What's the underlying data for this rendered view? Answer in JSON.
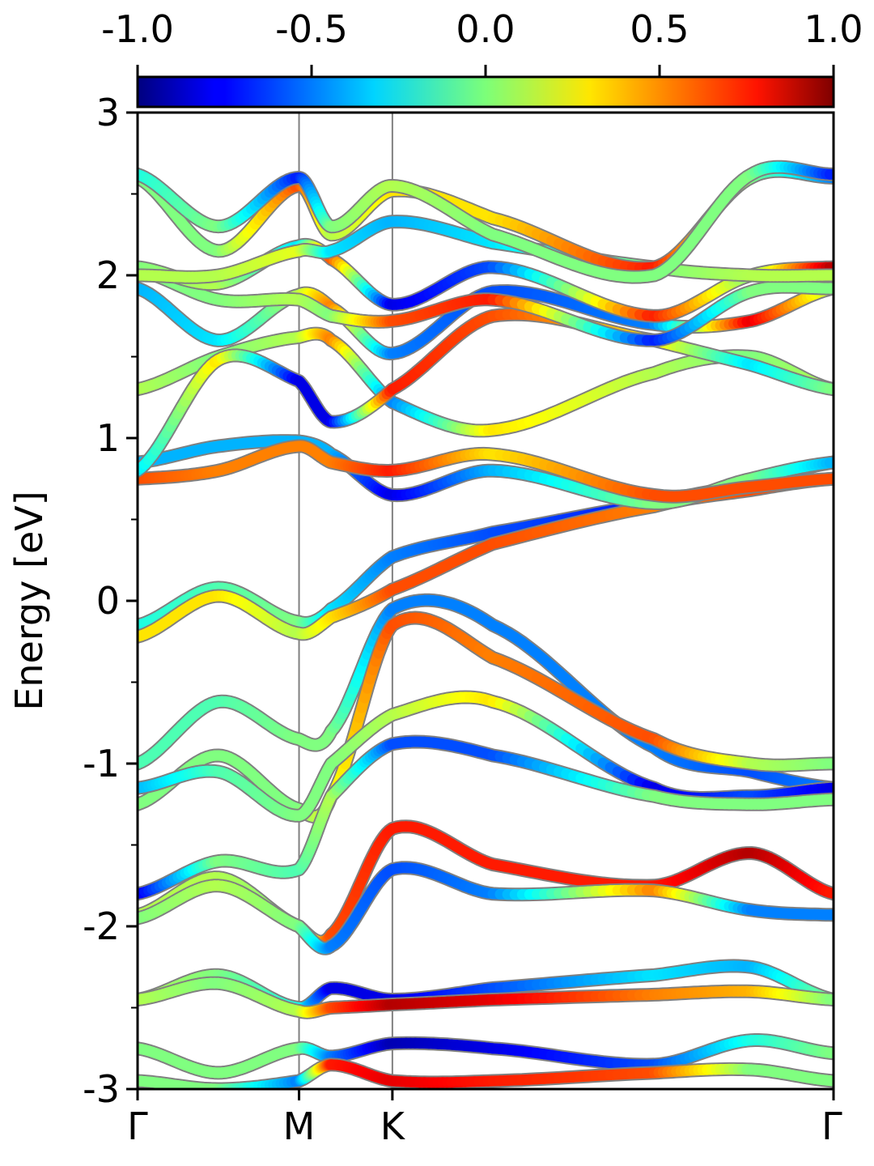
{
  "chart_data": {
    "type": "line",
    "xlabel": "",
    "ylabel": "Energy [eV]",
    "ylim": [
      -3,
      3
    ],
    "y_ticks": [
      3,
      2,
      1,
      0,
      -1,
      -2,
      -3
    ],
    "y_tick_labels": [
      "3",
      "2",
      "1",
      "0",
      "-1",
      "-2",
      "-3"
    ],
    "x_ticks": [
      0,
      1,
      1.578,
      4.31
    ],
    "x_tick_labels": [
      "Γ",
      "M",
      "K",
      "Γ"
    ],
    "xlim": [
      0,
      4.31
    ],
    "colorbar": {
      "range": [
        -1.0,
        1.0
      ],
      "ticks": [
        -1.0,
        -0.5,
        0.0,
        0.5,
        1.0
      ],
      "tick_labels": [
        "-1.0",
        "-0.5",
        "0.0",
        "0.5",
        "1.0"
      ],
      "colormap": "jet"
    },
    "grid": false,
    "colors": {
      "band_outline": "#808080",
      "vline": "#808080",
      "axes": "#000000"
    },
    "series": [
      {
        "x": [
          0,
          0.5,
          1.0,
          1.2,
          1.578,
          2.2,
          3.2,
          3.8,
          4.31
        ],
        "y": [
          -0.15,
          0.08,
          -0.13,
          -0.05,
          0.27,
          0.42,
          0.6,
          0.72,
          0.85
        ],
        "c": [
          -0.2,
          -0.1,
          0.0,
          -0.3,
          -0.5,
          -0.6,
          -0.7,
          -0.6,
          -0.4
        ]
      },
      {
        "x": [
          0,
          0.5,
          1.0,
          1.2,
          1.578,
          2.2,
          3.2,
          3.8,
          4.31
        ],
        "y": [
          -0.22,
          0.03,
          -0.2,
          -0.1,
          0.07,
          0.35,
          0.58,
          0.68,
          0.75
        ],
        "c": [
          0.3,
          0.3,
          0.1,
          0.3,
          0.6,
          0.6,
          0.5,
          0.6,
          0.6
        ]
      },
      {
        "x": [
          0,
          0.5,
          1.0,
          1.2,
          1.578,
          2.2,
          3.2,
          3.8,
          4.31
        ],
        "y": [
          -1.0,
          -0.62,
          -0.85,
          -0.8,
          -0.05,
          -0.15,
          -0.9,
          -1.05,
          -1.15
        ],
        "c": [
          -0.1,
          -0.1,
          0.0,
          0.0,
          -0.5,
          -0.5,
          -0.5,
          -0.6,
          -0.5
        ]
      },
      {
        "x": [
          0,
          0.5,
          1.0,
          1.2,
          1.578,
          2.2,
          3.2,
          3.8,
          4.31
        ],
        "y": [
          -1.25,
          -0.95,
          -1.28,
          -1.2,
          -0.15,
          -0.35,
          -0.85,
          -1.0,
          -1.0
        ],
        "c": [
          0.0,
          0.0,
          0.0,
          0.2,
          0.6,
          0.5,
          0.6,
          0.1,
          0.0
        ]
      },
      {
        "x": [
          0,
          0.5,
          1.0,
          1.2,
          1.578,
          2.2,
          3.2,
          3.8,
          4.31
        ],
        "y": [
          -1.15,
          -1.05,
          -1.32,
          -1.0,
          -0.7,
          -0.62,
          -1.15,
          -1.2,
          -1.15
        ],
        "c": [
          -0.4,
          -0.1,
          0.0,
          0.0,
          0.1,
          0.3,
          -0.8,
          -0.6,
          -0.8
        ]
      },
      {
        "x": [
          0,
          0.5,
          1.0,
          1.2,
          1.578,
          2.2,
          3.2,
          3.8,
          4.31
        ],
        "y": [
          -1.8,
          -1.6,
          -1.65,
          -1.2,
          -0.88,
          -0.95,
          -1.2,
          -1.25,
          -1.22
        ],
        "c": [
          -0.8,
          0.0,
          -0.1,
          0.1,
          -0.6,
          -0.6,
          0.0,
          0.0,
          0.0
        ]
      },
      {
        "x": [
          0,
          0.5,
          1.0,
          1.2,
          1.578,
          2.2,
          3.2,
          3.8,
          4.31
        ],
        "y": [
          -1.93,
          -1.7,
          -2.0,
          -2.05,
          -1.4,
          -1.62,
          -1.75,
          -1.55,
          -1.8
        ],
        "c": [
          0.1,
          0.1,
          0.0,
          0.6,
          0.7,
          0.7,
          0.7,
          0.9,
          0.7
        ]
      },
      {
        "x": [
          0,
          0.5,
          1.0,
          1.2,
          1.578,
          2.2,
          3.2,
          3.8,
          4.31
        ],
        "y": [
          -1.95,
          -1.75,
          -2.0,
          -2.12,
          -1.65,
          -1.8,
          -1.78,
          -1.9,
          -1.93
        ],
        "c": [
          0.0,
          0.1,
          0.0,
          -0.5,
          -0.6,
          -0.5,
          0.5,
          -0.5,
          -0.5
        ]
      },
      {
        "x": [
          0,
          0.5,
          1.0,
          1.2,
          1.578,
          2.2,
          3.2,
          3.8,
          4.31
        ],
        "y": [
          -2.45,
          -2.3,
          -2.5,
          -2.38,
          -2.45,
          -2.38,
          -2.3,
          -2.25,
          -2.45
        ],
        "c": [
          0.1,
          0.0,
          -0.2,
          -0.8,
          -0.8,
          -0.6,
          -0.3,
          -0.4,
          0.0
        ]
      },
      {
        "x": [
          0,
          0.5,
          1.0,
          1.2,
          1.578,
          2.2,
          3.2,
          3.8,
          4.31
        ],
        "y": [
          -2.45,
          -2.35,
          -2.52,
          -2.5,
          -2.48,
          -2.45,
          -2.42,
          -2.4,
          -2.45
        ],
        "c": [
          0.1,
          0.0,
          0.1,
          0.6,
          0.9,
          0.8,
          0.5,
          0.4,
          0.0
        ]
      },
      {
        "x": [
          0,
          0.5,
          1.0,
          1.2,
          1.578,
          2.2,
          3.2,
          3.8,
          4.31
        ],
        "y": [
          -2.75,
          -2.9,
          -2.75,
          -2.8,
          -2.72,
          -2.75,
          -2.85,
          -2.7,
          -2.78
        ],
        "c": [
          0.0,
          0.0,
          0.0,
          -0.5,
          -0.9,
          -0.8,
          -0.6,
          -0.2,
          0.0
        ]
      },
      {
        "x": [
          0,
          0.5,
          1.0,
          1.2,
          1.578,
          2.2,
          3.2,
          3.8,
          4.31
        ],
        "y": [
          -2.95,
          -3.0,
          -2.95,
          -2.85,
          -2.95,
          -2.95,
          -2.9,
          -2.88,
          -2.95
        ],
        "c": [
          0.0,
          0.0,
          -0.5,
          0.7,
          0.8,
          0.7,
          0.6,
          0.0,
          0.0
        ]
      },
      {
        "x": [
          0,
          0.5,
          1.0,
          1.2,
          1.578,
          2.2,
          3.2,
          3.8,
          4.31
        ],
        "y": [
          0.85,
          0.95,
          0.98,
          0.9,
          0.65,
          0.8,
          0.6,
          0.75,
          0.85
        ],
        "c": [
          -0.4,
          -0.4,
          -0.4,
          -0.4,
          -0.8,
          -0.4,
          0.0,
          0.0,
          -0.4
        ]
      },
      {
        "x": [
          0,
          0.5,
          1.0,
          1.2,
          1.578,
          2.2,
          3.2,
          3.8,
          4.31
        ],
        "y": [
          0.75,
          0.8,
          0.95,
          0.85,
          0.8,
          0.9,
          0.65,
          0.7,
          0.75
        ],
        "c": [
          0.6,
          0.5,
          0.5,
          0.5,
          0.7,
          0.3,
          0.6,
          0.6,
          0.6
        ]
      },
      {
        "x": [
          0,
          0.5,
          1.0,
          1.2,
          1.578,
          2.2,
          3.2,
          3.8,
          4.31
        ],
        "y": [
          1.3,
          1.5,
          1.62,
          1.6,
          1.22,
          1.05,
          1.4,
          1.5,
          1.3
        ],
        "c": [
          0.1,
          0.0,
          0.1,
          0.5,
          -0.5,
          0.3,
          0.1,
          0.0,
          0.1
        ]
      },
      {
        "x": [
          0,
          0.5,
          1.0,
          1.2,
          1.578,
          2.2,
          3.2,
          3.8,
          4.31
        ],
        "y": [
          0.8,
          1.48,
          1.35,
          1.1,
          1.3,
          1.75,
          1.6,
          1.45,
          1.3
        ],
        "c": [
          -0.3,
          0.3,
          -0.8,
          -0.8,
          0.7,
          0.6,
          0.3,
          -0.3,
          0.0
        ]
      },
      {
        "x": [
          0,
          0.5,
          1.0,
          1.2,
          1.578,
          2.2,
          3.2,
          3.8,
          4.31
        ],
        "y": [
          1.92,
          1.6,
          1.88,
          1.8,
          1.52,
          1.9,
          1.7,
          1.72,
          1.92
        ],
        "c": [
          -0.4,
          -0.3,
          0.1,
          0.5,
          -0.5,
          -0.6,
          -0.5,
          0.8,
          0.1
        ]
      },
      {
        "x": [
          0,
          0.5,
          1.0,
          1.2,
          1.578,
          2.2,
          3.2,
          3.8,
          4.31
        ],
        "y": [
          2.03,
          1.85,
          1.85,
          1.75,
          1.72,
          1.85,
          1.6,
          1.9,
          1.92
        ],
        "c": [
          0.0,
          0.0,
          0.1,
          0.0,
          0.6,
          0.7,
          -0.7,
          0.0,
          0.0
        ]
      },
      {
        "x": [
          0,
          0.5,
          1.0,
          1.2,
          1.578,
          2.2,
          3.2,
          3.8,
          4.31
        ],
        "y": [
          2.05,
          1.95,
          2.18,
          2.1,
          1.82,
          2.05,
          1.75,
          2.0,
          2.05
        ],
        "c": [
          0.0,
          0.1,
          -0.3,
          0.6,
          -0.8,
          -0.6,
          0.7,
          0.0,
          0.9
        ]
      },
      {
        "x": [
          0,
          0.5,
          1.0,
          1.2,
          1.578,
          2.2,
          3.2,
          3.8,
          4.31
        ],
        "y": [
          2.0,
          2.0,
          2.15,
          2.15,
          2.33,
          2.2,
          2.05,
          2.0,
          2.0
        ],
        "c": [
          0.1,
          0.1,
          0.2,
          -0.3,
          -0.4,
          -0.3,
          0.0,
          0.1,
          0.1
        ]
      },
      {
        "x": [
          0,
          0.5,
          1.0,
          1.2,
          1.578,
          2.2,
          3.2,
          3.8,
          4.31
        ],
        "y": [
          2.6,
          2.15,
          2.55,
          2.25,
          2.52,
          2.35,
          2.05,
          2.6,
          2.6
        ],
        "c": [
          0.0,
          0.0,
          0.6,
          0.1,
          0.3,
          0.3,
          0.7,
          0.0,
          -0.5
        ]
      },
      {
        "x": [
          0,
          0.5,
          1.0,
          1.2,
          1.578,
          2.2,
          3.2,
          3.8,
          4.31
        ],
        "y": [
          2.62,
          2.3,
          2.6,
          2.3,
          2.55,
          2.25,
          2.0,
          2.62,
          2.62
        ],
        "c": [
          -0.2,
          0.0,
          -0.7,
          0.0,
          0.1,
          0.0,
          0.0,
          0.0,
          -0.7
        ]
      }
    ]
  }
}
